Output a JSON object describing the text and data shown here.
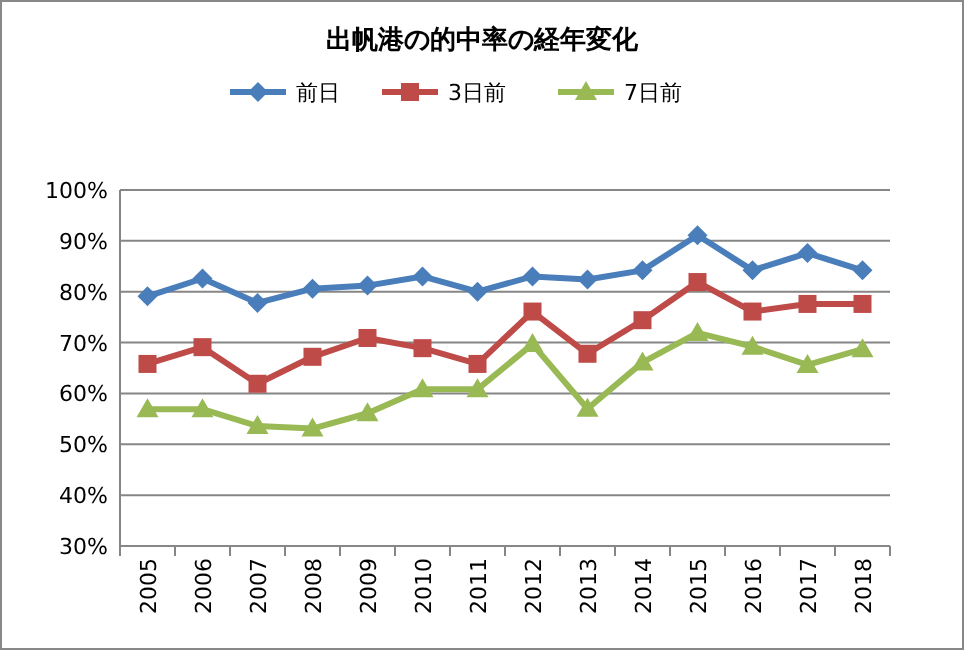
{
  "chart_data": {
    "type": "line",
    "title": "出帆港の的中率の経年変化",
    "categories": [
      "2005",
      "2006",
      "2007",
      "2008",
      "2009",
      "2010",
      "2011",
      "2012",
      "2013",
      "2014",
      "2015",
      "2016",
      "2017",
      "2018"
    ],
    "series": [
      {
        "name": "前日",
        "color": "#4a7ebb",
        "marker": "diamond",
        "values": [
          79.1,
          82.6,
          77.8,
          80.6,
          81.2,
          83,
          80,
          83,
          82.4,
          84.2,
          91.1,
          84.2,
          87.6,
          84.2
        ]
      },
      {
        "name": "3日前",
        "color": "#be4b48",
        "marker": "square",
        "values": [
          65.8,
          69.1,
          61.9,
          67.2,
          70.9,
          68.9,
          65.8,
          76.1,
          67.8,
          74.4,
          81.9,
          76.1,
          77.6,
          77.6
        ]
      },
      {
        "name": "7日前",
        "color": "#98b954",
        "marker": "triangle",
        "values": [
          56.9,
          56.9,
          53.6,
          53.1,
          56.1,
          60.8,
          60.8,
          69.7,
          57,
          66.1,
          71.9,
          69.2,
          65.6,
          68.7
        ]
      }
    ],
    "ylim": [
      30,
      100
    ],
    "yticks": [
      {
        "value": 30,
        "label": "30%"
      },
      {
        "value": 40,
        "label": "40%"
      },
      {
        "value": 50,
        "label": "50%"
      },
      {
        "value": 60,
        "label": "60%"
      },
      {
        "value": 70,
        "label": "70%"
      },
      {
        "value": 80,
        "label": "80%"
      },
      {
        "value": 90,
        "label": "90%"
      },
      {
        "value": 100,
        "label": "100%"
      }
    ],
    "grid": "y",
    "legend": "top"
  }
}
